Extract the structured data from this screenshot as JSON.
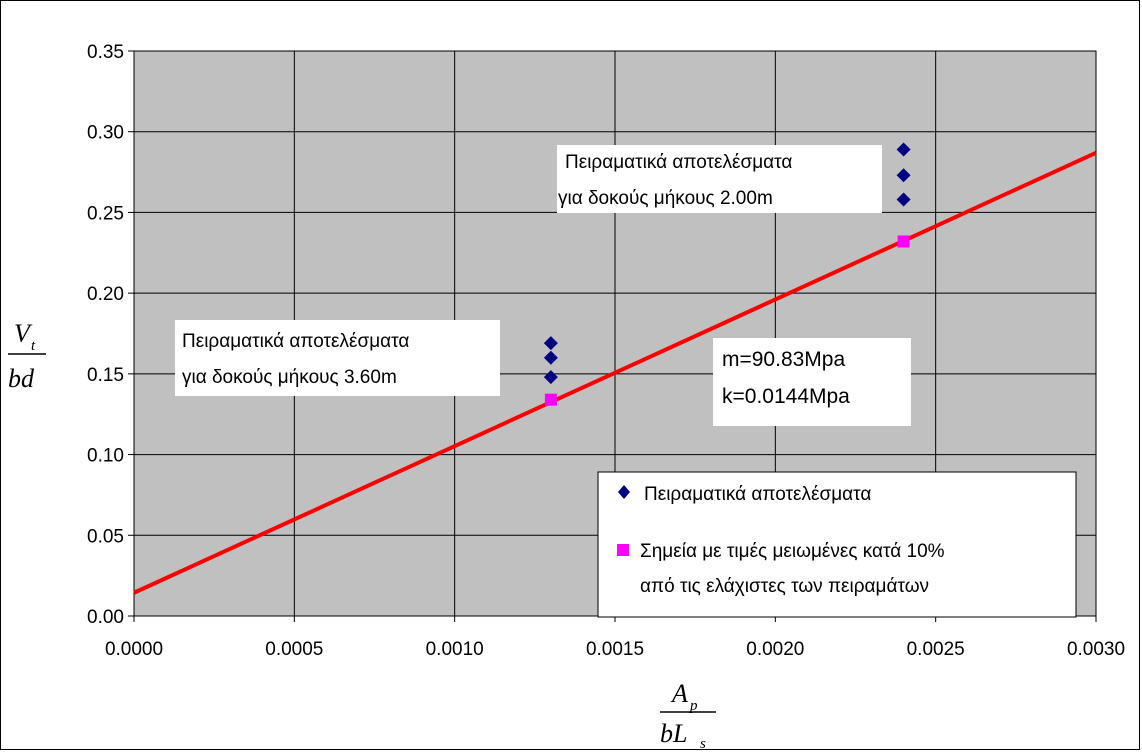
{
  "chart_data": {
    "type": "scatter",
    "xlim": [
      0,
      0.003
    ],
    "ylim": [
      0,
      0.35
    ],
    "x_ticks": [
      "0.0000",
      "0.0005",
      "0.0010",
      "0.0015",
      "0.0020",
      "0.0025",
      "0.0030"
    ],
    "y_ticks": [
      "0.00",
      "0.05",
      "0.10",
      "0.15",
      "0.20",
      "0.25",
      "0.30",
      "0.35"
    ],
    "grid": true,
    "colors": {
      "plot_bg": "#c0c0c0",
      "line": "#ff0000",
      "experimental": "#000080",
      "reduced": "#ff00ff"
    },
    "ylabel": {
      "numerator": "V",
      "numerator_sub": "t",
      "denominator": "bd"
    },
    "xlabel": {
      "numerator": "A",
      "numerator_sub": "p",
      "denominator": "bL",
      "denominator_sub": "s"
    },
    "series": [
      {
        "name": "Πειραματικά αποτελέσματα",
        "marker": "diamond",
        "points": [
          [
            0.0013,
            0.169
          ],
          [
            0.0013,
            0.16
          ],
          [
            0.0013,
            0.148
          ],
          [
            0.0024,
            0.289
          ],
          [
            0.0024,
            0.273
          ],
          [
            0.0024,
            0.258
          ]
        ]
      },
      {
        "name": "Σημεία με τιμές μειωμένες κατά 10% από τις ελάχιστες των πειραμάτων",
        "marker": "square",
        "points": [
          [
            0.0013,
            0.134
          ],
          [
            0.0024,
            0.232
          ]
        ]
      },
      {
        "marker": "line",
        "points": [
          [
            0,
            0.0144
          ],
          [
            0.003,
            0.2869
          ]
        ]
      }
    ],
    "annotations": [
      {
        "id": "ann1",
        "lines": [
          "Πειραματικά αποτελέσματα",
          "για δοκούς μήκους 3.60m"
        ]
      },
      {
        "id": "ann2",
        "lines": [
          "Πειραματικά αποτελέσματα",
          "για δοκούς μήκους 2.00m"
        ]
      },
      {
        "id": "ann3",
        "lines": [
          "m=90.83Mpa",
          "k=0.0144Mpa"
        ]
      }
    ],
    "legend": {
      "placement": "bottom-right",
      "items": [
        {
          "marker": "diamond",
          "lines": [
            "Πειραματικά αποτελέσματα"
          ]
        },
        {
          "marker": "square",
          "lines": [
            "Σημεία με τιμές μειωμένες κατά 10%",
            "από τις ελάχιστες των πειραμάτων"
          ]
        }
      ]
    }
  }
}
